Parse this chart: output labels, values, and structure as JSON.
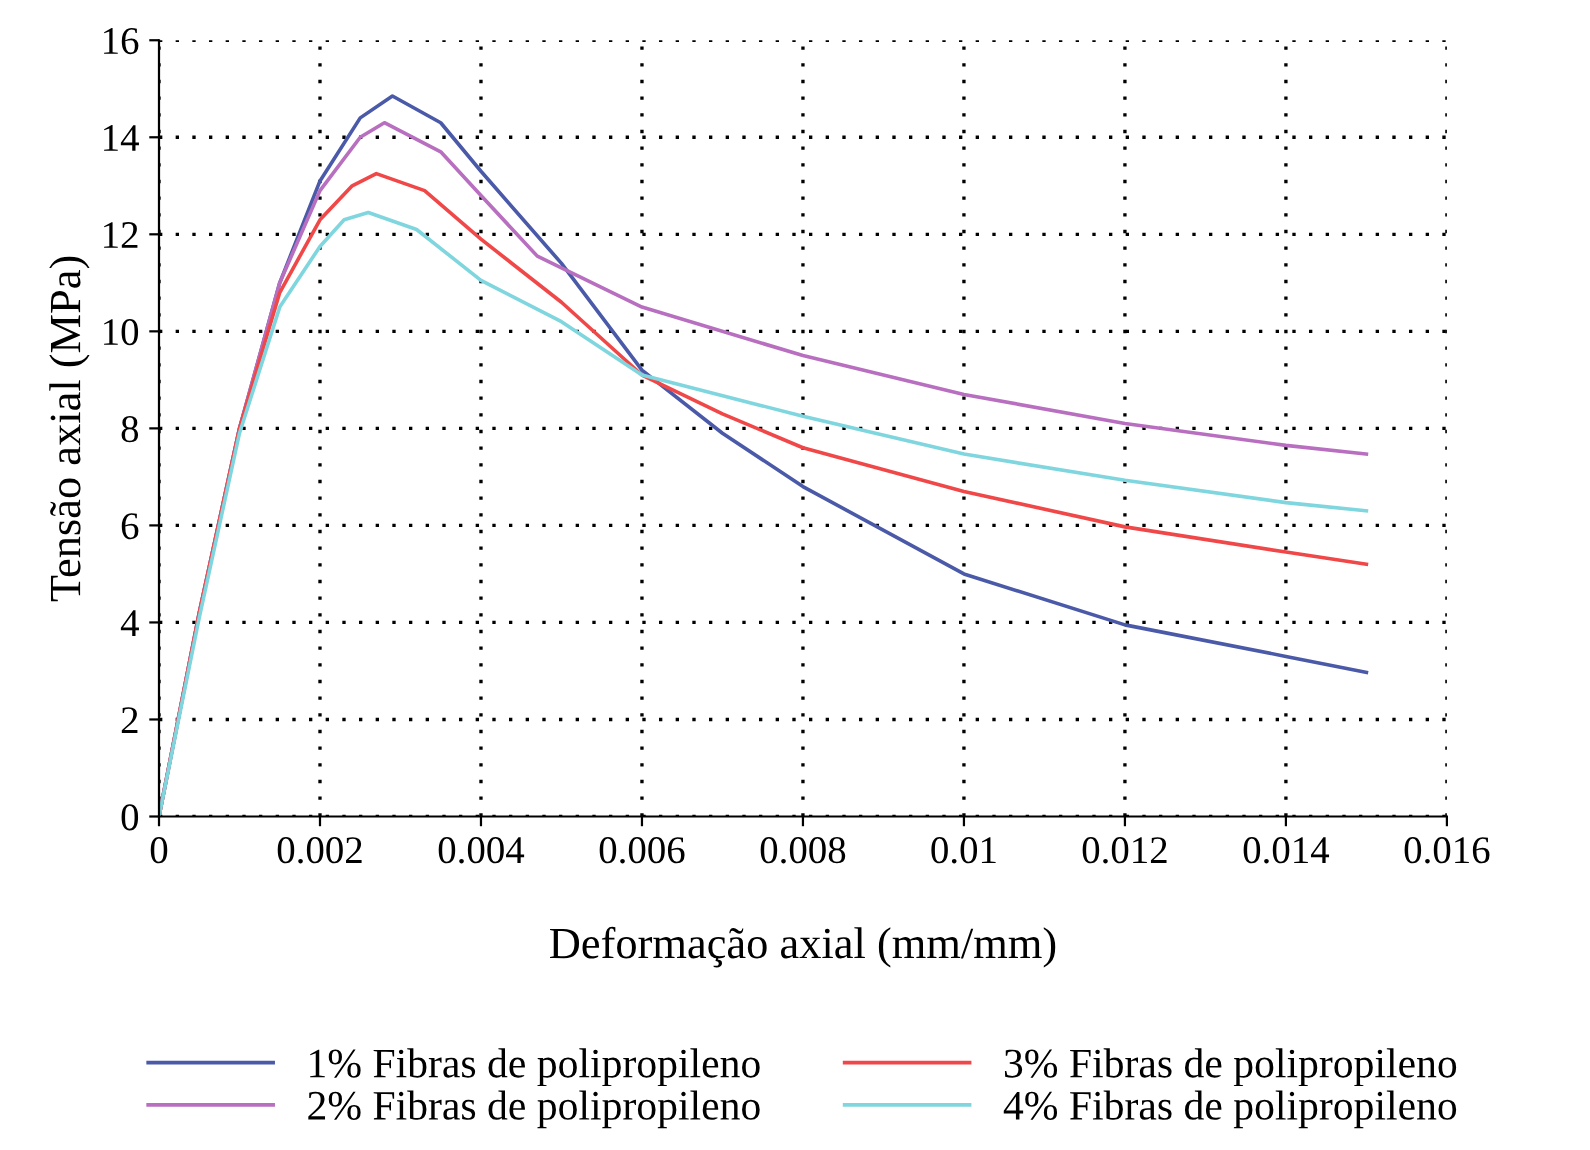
{
  "chart_data": {
    "type": "line",
    "xlabel": "Deformação axial (mm/mm)",
    "ylabel": "Tensão axial (MPa)",
    "xlim": [
      0,
      0.016
    ],
    "xticks": [
      {
        "value": 0,
        "label": "0"
      },
      0.002,
      0.004,
      0.006,
      0.008,
      0.01,
      0.012,
      0.014,
      0.016
    ],
    "ylim": [
      0,
      16
    ],
    "yticks": [
      0,
      2,
      4,
      6,
      8,
      10,
      12,
      14,
      16
    ],
    "grid": true,
    "legend": "bottom",
    "line_style": "solid",
    "marker": "none",
    "series": [
      {
        "name": "1% Fibras de polipropileno",
        "color": "#4a5aa8",
        "x": [
          0,
          0.0005,
          0.001,
          0.0015,
          0.002,
          0.0025,
          0.0029,
          0.0035,
          0.004,
          0.005,
          0.006,
          0.007,
          0.008,
          0.01,
          0.012,
          0.014,
          0.015
        ],
        "values": [
          0,
          4.2,
          8.0,
          11.0,
          13.1,
          14.4,
          14.85,
          14.3,
          13.3,
          11.4,
          9.2,
          7.9,
          6.8,
          5.0,
          3.95,
          3.3,
          2.97
        ]
      },
      {
        "name": "2% Fibras de polipropileno",
        "color": "#b86fc0",
        "x": [
          0,
          0.0005,
          0.001,
          0.0015,
          0.002,
          0.0025,
          0.0028,
          0.0035,
          0.004,
          0.0047,
          0.006,
          0.008,
          0.01,
          0.012,
          0.014,
          0.015
        ],
        "values": [
          0,
          4.2,
          8.0,
          11.0,
          12.9,
          14.0,
          14.3,
          13.7,
          12.8,
          11.55,
          10.5,
          9.5,
          8.7,
          8.1,
          7.65,
          7.47
        ]
      },
      {
        "name": "3% Fibras de polipropileno",
        "color": "#f04848",
        "x": [
          0,
          0.0005,
          0.001,
          0.0015,
          0.002,
          0.0024,
          0.0027,
          0.0033,
          0.004,
          0.005,
          0.006,
          0.007,
          0.008,
          0.01,
          0.012,
          0.014,
          0.015
        ],
        "values": [
          0,
          4.2,
          8.0,
          10.8,
          12.3,
          13.0,
          13.25,
          12.9,
          11.9,
          10.6,
          9.1,
          8.3,
          7.6,
          6.7,
          5.97,
          5.45,
          5.2
        ]
      },
      {
        "name": "4% Fibras de polipropileno",
        "color": "#7fd6de",
        "x": [
          0,
          0.0005,
          0.001,
          0.0015,
          0.002,
          0.0023,
          0.0026,
          0.0032,
          0.004,
          0.005,
          0.006,
          0.008,
          0.01,
          0.012,
          0.014,
          0.015
        ],
        "values": [
          0,
          4.1,
          7.9,
          10.5,
          11.75,
          12.3,
          12.45,
          12.1,
          11.05,
          10.2,
          9.1,
          8.25,
          7.47,
          6.93,
          6.47,
          6.3
        ]
      }
    ]
  }
}
